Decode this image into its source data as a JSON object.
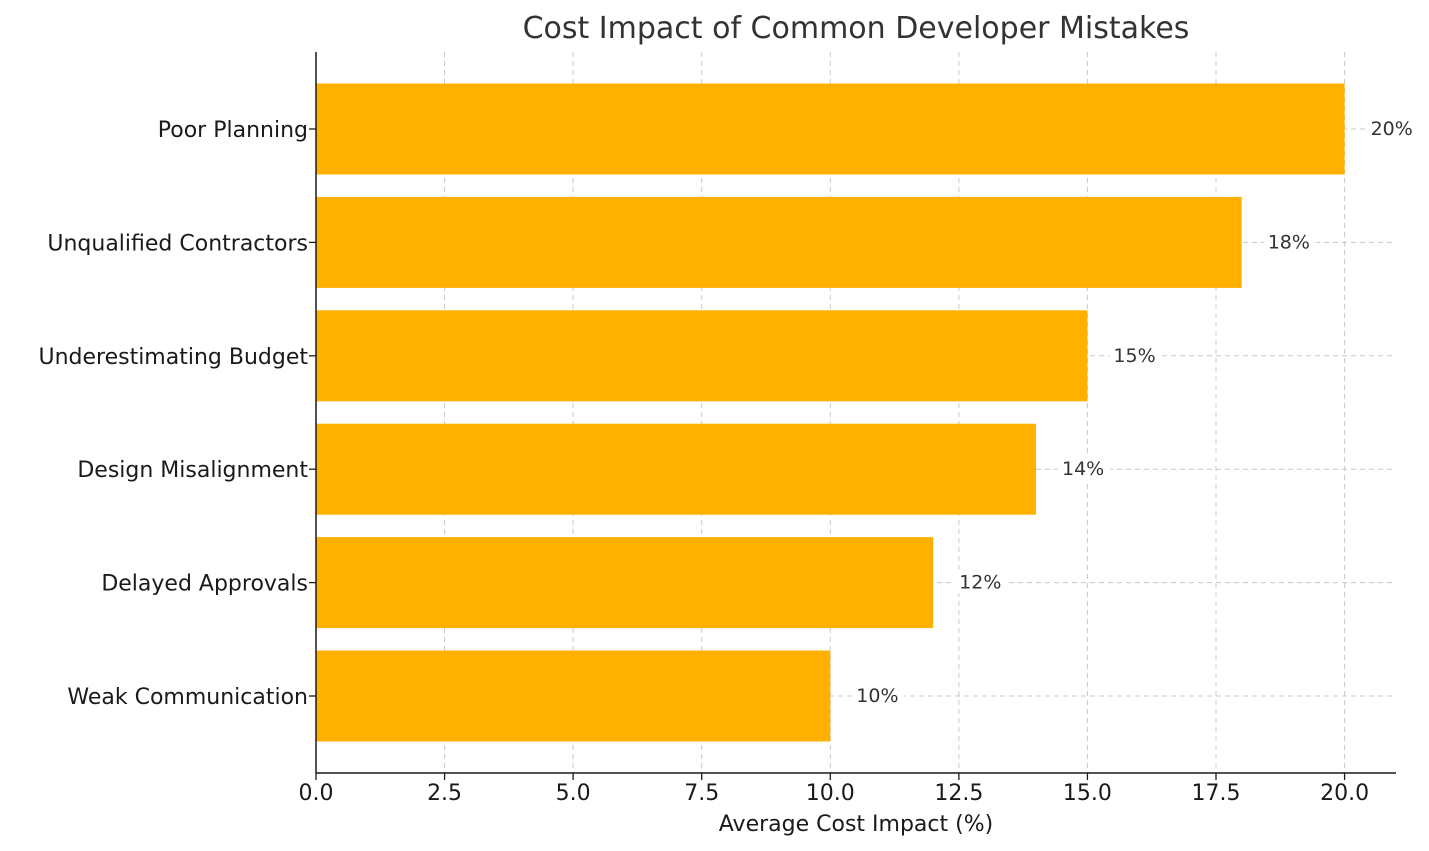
{
  "chart_data": {
    "type": "bar",
    "orientation": "horizontal",
    "title": "Cost Impact of Common Developer Mistakes",
    "xlabel": "Average Cost Impact (%)",
    "ylabel": "",
    "categories": [
      "Poor Planning",
      "Unqualified Contractors",
      "Underestimating Budget",
      "Design Misalignment",
      "Delayed Approvals",
      "Weak Communication"
    ],
    "values": [
      20,
      18,
      15,
      14,
      12,
      10
    ],
    "value_labels": [
      "20%",
      "18%",
      "15%",
      "14%",
      "12%",
      "10%"
    ],
    "xlim": [
      0,
      21
    ],
    "xticks": [
      0,
      2.5,
      5,
      7.5,
      10,
      12.5,
      15,
      17.5,
      20
    ],
    "xtick_labels": [
      "0.0",
      "2.5",
      "5.0",
      "7.5",
      "10.0",
      "12.5",
      "15.0",
      "17.5",
      "20.0"
    ],
    "grid": true,
    "grid_style": "dashed",
    "bar_color": "#FFB000",
    "legend": "none"
  }
}
